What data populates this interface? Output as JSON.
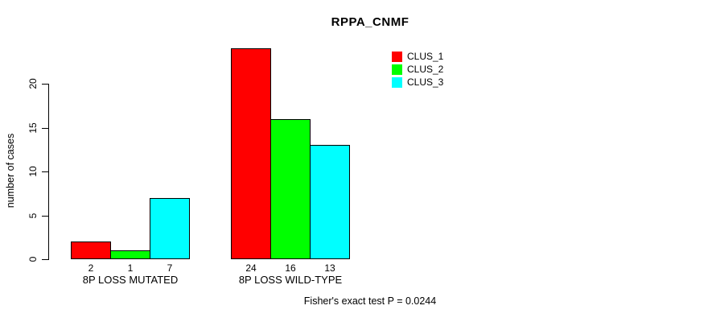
{
  "chart_data": {
    "type": "bar",
    "title": "RPPA_CNMF",
    "xlabel": "",
    "ylabel": "number of cases",
    "categories": [
      "8P LOSS MUTATED",
      "8P LOSS WILD-TYPE"
    ],
    "series": [
      {
        "name": "CLUS_1",
        "color": "#ff0000",
        "values": [
          2,
          24
        ]
      },
      {
        "name": "CLUS_2",
        "color": "#00ff00",
        "values": [
          1,
          16
        ]
      },
      {
        "name": "CLUS_3",
        "color": "#00ffff",
        "values": [
          7,
          13
        ]
      }
    ],
    "yticks": [
      0,
      5,
      10,
      15,
      20
    ],
    "ylim": [
      0,
      24
    ],
    "grid": false,
    "bar_value_labels_shown": true,
    "legend_position": "inside-top-right",
    "annotation": "Fisher's exact test P = 0.0244"
  }
}
